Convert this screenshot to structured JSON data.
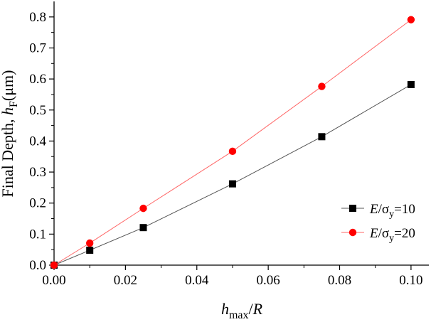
{
  "chart_data": {
    "type": "line",
    "xlabel": {
      "main": "h",
      "sub": "max",
      "tail": "/R"
    },
    "ylabel": {
      "prefix": "Final Depth, ",
      "var": "h",
      "sub": "F",
      "suffix": "(μm)"
    },
    "xlim": [
      0.0,
      0.105
    ],
    "ylim": [
      0.0,
      0.85
    ],
    "xticks": [
      0.0,
      0.02,
      0.04,
      0.06,
      0.08,
      0.1
    ],
    "xtick_labels": [
      "0.00",
      "0.02",
      "0.04",
      "0.06",
      "0.08",
      "0.10"
    ],
    "yticks": [
      0.0,
      0.1,
      0.2,
      0.3,
      0.4,
      0.5,
      0.6,
      0.7,
      0.8
    ],
    "ytick_labels": [
      "0.0",
      "0.1",
      "0.2",
      "0.3",
      "0.4",
      "0.5",
      "0.6",
      "0.7",
      "0.8"
    ],
    "grid": false,
    "legend_position": "lower-right",
    "series": [
      {
        "name": {
          "var": "E",
          "mid": "/σ",
          "sub": "y",
          "tail": "=10"
        },
        "marker": "square",
        "color": "#000000",
        "line_color": "#555555",
        "x": [
          0.0,
          0.01,
          0.025,
          0.05,
          0.075,
          0.1
        ],
        "y": [
          0.0,
          0.048,
          0.121,
          0.262,
          0.414,
          0.582
        ]
      },
      {
        "name": {
          "var": "E",
          "mid": "/σ",
          "sub": "y",
          "tail": "=20"
        },
        "marker": "circle",
        "color": "#ff0000",
        "line_color": "#ff6666",
        "x": [
          0.0,
          0.01,
          0.025,
          0.05,
          0.075,
          0.1
        ],
        "y": [
          0.0,
          0.071,
          0.183,
          0.367,
          0.576,
          0.791
        ]
      }
    ]
  }
}
